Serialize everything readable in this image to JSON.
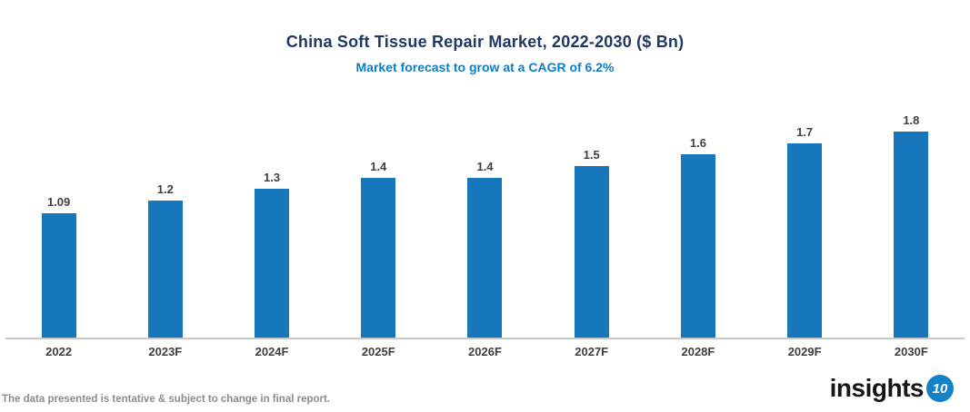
{
  "header": {
    "title": "China Soft Tissue Repair Market, 2022-2030 ($ Bn)",
    "subtitle": "Market forecast to grow at a CAGR of 6.2%"
  },
  "footer": {
    "note": "The data presented is tentative & subject to change in final report."
  },
  "logo": {
    "text": "insights",
    "badge": "10"
  },
  "colors": {
    "bar": "#1777bd",
    "title": "#1f3864",
    "subtitle": "#0f7dc6",
    "value_label": "#404040",
    "axis_line": "#c9c9c9",
    "footer_text": "#8c8c8c",
    "logo_badge": "#1581c7"
  },
  "chart_data": {
    "type": "bar",
    "title": "China Soft Tissue Repair Market, 2022-2030 ($ Bn)",
    "subtitle": "Market forecast to grow at a CAGR of 6.2%",
    "categories": [
      "2022",
      "2023F",
      "2024F",
      "2025F",
      "2026F",
      "2027F",
      "2028F",
      "2029F",
      "2030F"
    ],
    "values": [
      1.09,
      1.2,
      1.3,
      1.4,
      1.4,
      1.5,
      1.6,
      1.7,
      1.8
    ],
    "value_labels": [
      "1.09",
      "1.2",
      "1.3",
      "1.4",
      "1.4",
      "1.5",
      "1.6",
      "1.7",
      "1.8"
    ],
    "xlabel": "",
    "ylabel": "",
    "ylim": [
      0,
      2.0
    ],
    "grid": false,
    "legend": false,
    "bar_color": "#1777bd"
  }
}
